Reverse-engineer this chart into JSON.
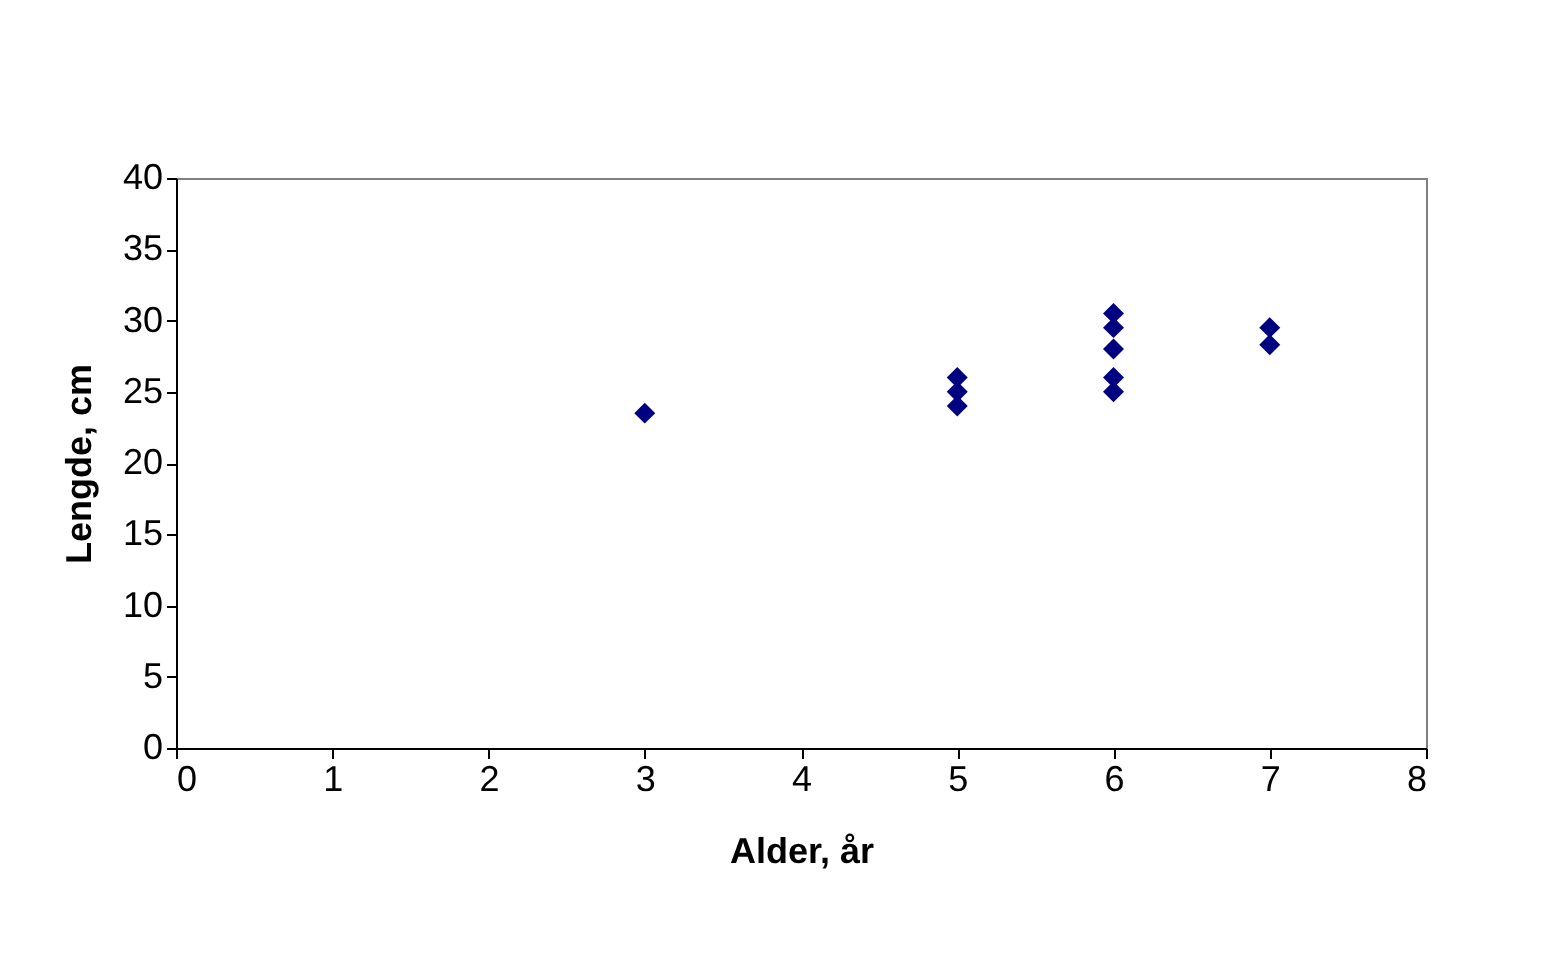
{
  "chart_data": {
    "type": "scatter",
    "xlabel": "Alder, år",
    "ylabel": "Lengde, cm",
    "x": [
      3,
      5,
      5,
      5,
      6,
      6,
      6,
      6,
      6,
      7,
      7
    ],
    "series": [
      {
        "color": "#000080",
        "values": [
          23.5,
          26,
          25,
          24,
          30.5,
          29.5,
          28,
          26,
          25,
          29.5,
          28.3
        ]
      }
    ],
    "xlim": [
      0,
      8
    ],
    "xticks": [
      0,
      1,
      2,
      3,
      4,
      5,
      6,
      7,
      8
    ],
    "ylim": [
      0,
      40
    ],
    "yticks": [
      0,
      5,
      10,
      15,
      20,
      25,
      30,
      35,
      40
    ],
    "marker": "diamond",
    "grid": false
  }
}
